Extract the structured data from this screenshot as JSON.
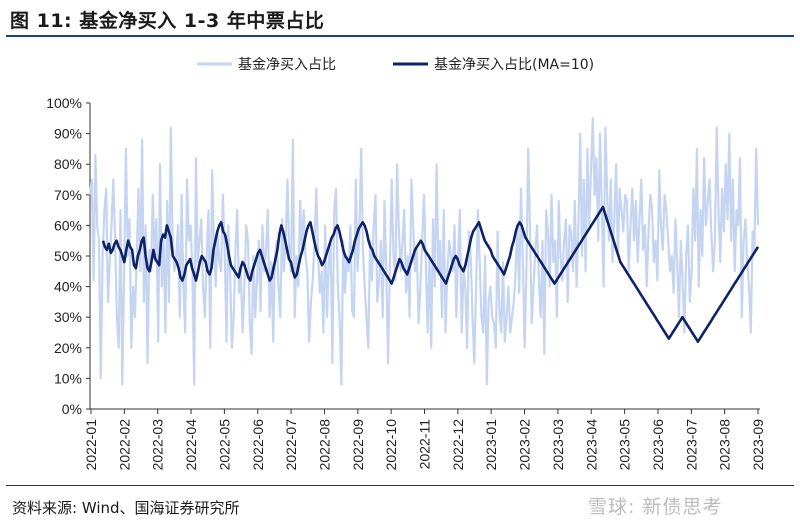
{
  "title": "图 11:  基金净买入 1-3 年中票占比",
  "source": "资料来源:  Wind、国海证券研究所",
  "watermark": "雪球: 新债思考",
  "colors": {
    "raw": "#c5d5f1",
    "ma": "#0e2266",
    "rule": "#1a3f8f"
  },
  "chart_data": {
    "type": "line",
    "ylim": [
      0,
      100
    ],
    "y_ticks": [
      "0%",
      "10%",
      "20%",
      "30%",
      "40%",
      "50%",
      "60%",
      "70%",
      "80%",
      "90%",
      "100%"
    ],
    "x_ticks": [
      "2022-01",
      "2022-02",
      "2022-03",
      "2022-04",
      "2022-05",
      "2022-06",
      "2022-07",
      "2022-08",
      "2022-09",
      "2022-10",
      "2022-11",
      "2022-12",
      "2023-01",
      "2023-02",
      "2023-03",
      "2023-04",
      "2023-05",
      "2023-06",
      "2023-07",
      "2023-08",
      "2023-09"
    ],
    "legend": [
      "基金净买入占比",
      "基金净买入占比(MA=10)"
    ],
    "series": [
      {
        "name": "基金净买入占比",
        "values": [
          70,
          75,
          42,
          83,
          60,
          55,
          10,
          50,
          65,
          72,
          35,
          48,
          60,
          75,
          55,
          30,
          20,
          65,
          8,
          45,
          85,
          50,
          62,
          20,
          40,
          30,
          50,
          72,
          45,
          88,
          35,
          60,
          15,
          52,
          45,
          70,
          50,
          62,
          22,
          80,
          40,
          55,
          25,
          68,
          35,
          92,
          55,
          45,
          50,
          60,
          30,
          70,
          40,
          25,
          75,
          55,
          60,
          45,
          8,
          82,
          48,
          55,
          62,
          40,
          30,
          50,
          65,
          20,
          78,
          55,
          40,
          58,
          48,
          45,
          70,
          52,
          22,
          60,
          45,
          20,
          30,
          52,
          65,
          38,
          45,
          25,
          40,
          60,
          55,
          28,
          18,
          50,
          30,
          42,
          55,
          32,
          60,
          45,
          52,
          65,
          30,
          48,
          22,
          50,
          55,
          40,
          30,
          62,
          45,
          55,
          75,
          50,
          45,
          88,
          30,
          50,
          40,
          68,
          52,
          65,
          50,
          45,
          22,
          35,
          42,
          55,
          72,
          50,
          38,
          45,
          25,
          60,
          30,
          48,
          55,
          15,
          65,
          72,
          40,
          30,
          8,
          55,
          38,
          50,
          45,
          60,
          32,
          30,
          75,
          45,
          58,
          85,
          52,
          40,
          30,
          20,
          55,
          42,
          60,
          70,
          35,
          42,
          55,
          30,
          68,
          45,
          15,
          48,
          75,
          50,
          42,
          80,
          58,
          45,
          55,
          65,
          38,
          50,
          30,
          75,
          60,
          45,
          52,
          28,
          40,
          55,
          70,
          48,
          25,
          50,
          20,
          62,
          40,
          80,
          45,
          55,
          30,
          65,
          25,
          45,
          55,
          50,
          45,
          60,
          30,
          50,
          65,
          25,
          45,
          40,
          20,
          58,
          50,
          30,
          15,
          40,
          65,
          48,
          30,
          25,
          50,
          8,
          35,
          40,
          30,
          28,
          20,
          58,
          32,
          25,
          48,
          22,
          30,
          40,
          25,
          30,
          35,
          45,
          60,
          38,
          72,
          50,
          20,
          45,
          85,
          60,
          28,
          40,
          52,
          60,
          42,
          30,
          55,
          18,
          65,
          58,
          40,
          70,
          48,
          55,
          30,
          68,
          50,
          42,
          55,
          62,
          35,
          60,
          58,
          45,
          68,
          40,
          60,
          90,
          50,
          75,
          45,
          85,
          60,
          78,
          95,
          70,
          82,
          55,
          90,
          65,
          40,
          92,
          70,
          55,
          75,
          48,
          62,
          80,
          50,
          72,
          65,
          58,
          70,
          68,
          45,
          60,
          72,
          55,
          68,
          48,
          62,
          75,
          52,
          60,
          40,
          58,
          70,
          65,
          48,
          55,
          42,
          78,
          60,
          52,
          70,
          65,
          55,
          45,
          50,
          38,
          62,
          48,
          30,
          55,
          42,
          25,
          50,
          60,
          35,
          45,
          72,
          55,
          85,
          40,
          65,
          50,
          82,
          60,
          68,
          75,
          58,
          45,
          55,
          92,
          65,
          48,
          72,
          58,
          80,
          62,
          90,
          55,
          75,
          45,
          65,
          60,
          82,
          30,
          55,
          62,
          48,
          40,
          25,
          58,
          52,
          85,
          60
        ]
      },
      {
        "name": "基金净买入占比(MA=10)",
        "values": [
          55,
          53,
          52,
          54,
          51,
          52,
          54,
          55,
          53,
          52,
          50,
          48,
          52,
          55,
          53,
          52,
          47,
          46,
          50,
          52,
          55,
          56,
          50,
          46,
          45,
          48,
          52,
          49,
          48,
          47,
          55,
          57,
          56,
          60,
          58,
          56,
          50,
          49,
          48,
          46,
          43,
          42,
          44,
          47,
          48,
          49,
          46,
          44,
          42,
          45,
          48,
          50,
          49,
          48,
          45,
          44,
          46,
          52,
          55,
          58,
          60,
          61,
          58,
          57,
          54,
          50,
          47,
          46,
          45,
          44,
          43,
          46,
          48,
          47,
          45,
          43,
          42,
          45,
          47,
          49,
          51,
          52,
          50,
          48,
          46,
          44,
          42,
          43,
          46,
          49,
          52,
          57,
          60,
          58,
          55,
          52,
          49,
          48,
          45,
          43,
          44,
          47,
          50,
          52,
          55,
          58,
          60,
          61,
          58,
          55,
          52,
          50,
          49,
          47,
          48,
          50,
          52,
          54,
          56,
          57,
          59,
          60,
          58,
          55,
          52,
          50,
          49,
          48,
          50,
          52,
          55,
          57,
          59,
          60,
          61,
          60,
          58,
          55,
          53,
          52,
          50,
          49,
          48,
          47,
          46,
          45,
          44,
          43,
          42,
          41,
          43,
          45,
          47,
          49,
          48,
          46,
          45,
          44,
          46,
          48,
          50,
          52,
          53,
          54,
          55,
          54,
          52,
          51,
          50,
          49,
          48,
          47,
          46,
          45,
          44,
          43,
          42,
          41,
          43,
          45,
          47,
          49,
          50,
          49,
          47,
          46,
          45,
          47,
          50,
          53,
          56,
          58,
          59,
          60,
          61,
          59,
          57,
          55,
          54,
          53,
          52,
          50,
          49,
          48,
          47,
          46,
          45,
          44,
          46,
          48,
          50,
          53,
          55,
          58,
          60,
          61,
          60,
          58,
          56,
          55,
          54,
          53,
          52,
          51,
          50,
          49,
          48,
          47,
          46,
          45,
          44,
          43,
          42,
          41,
          42,
          43,
          44,
          45,
          46,
          47,
          48,
          49,
          50,
          51,
          52,
          53,
          54,
          55,
          56,
          57,
          58,
          59,
          60,
          61,
          62,
          63,
          64,
          65,
          66,
          64,
          62,
          60,
          58,
          56,
          54,
          52,
          50,
          48,
          47,
          46,
          45,
          44,
          43,
          42,
          41,
          40,
          39,
          38,
          37,
          36,
          35,
          34,
          33,
          32,
          31,
          30,
          29,
          28,
          27,
          26,
          25,
          24,
          23,
          24,
          25,
          26,
          27,
          28,
          29,
          30,
          29,
          28,
          27,
          26,
          25,
          24,
          23,
          22,
          23,
          24,
          25,
          26,
          27,
          28,
          29,
          30,
          31,
          32,
          33,
          34,
          35,
          36,
          37,
          38,
          39,
          40,
          41,
          42,
          43,
          44,
          45,
          46,
          47,
          48,
          49,
          50,
          51,
          52,
          53
        ]
      }
    ]
  }
}
